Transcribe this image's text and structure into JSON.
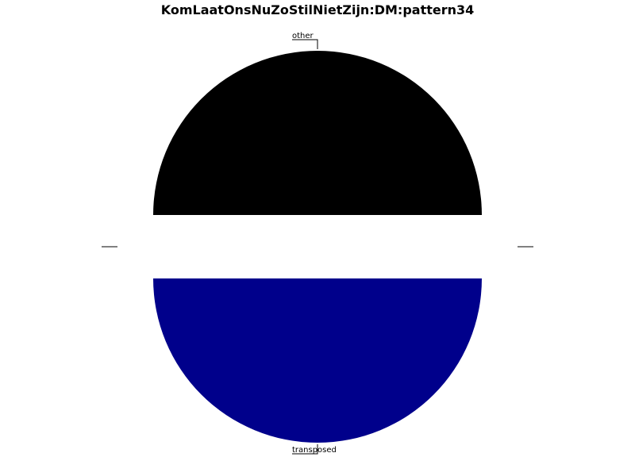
{
  "chart_data": {
    "type": "pie",
    "title": "KomLaatOnsNuZoStilNietZijn:DM:pattern34",
    "slices": [
      {
        "label": "other",
        "value": 50,
        "color": "#000000",
        "explode": 0.2
      },
      {
        "label": "transposed",
        "value": 50,
        "color": "#00008b",
        "explode": 0.2
      }
    ],
    "start_angle_deg": 0,
    "direction": "counterclockwise",
    "labels_outside": true,
    "legend": "none"
  }
}
